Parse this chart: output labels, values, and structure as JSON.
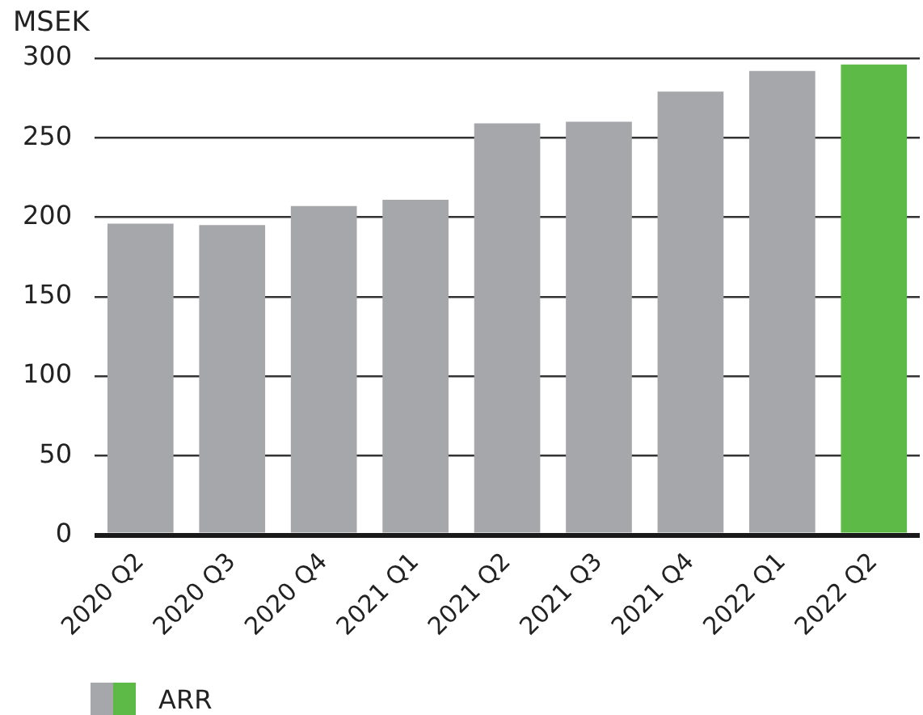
{
  "chart_data": {
    "type": "bar",
    "ylabel": "MSEK",
    "categories": [
      "2020 Q2",
      "2020 Q3",
      "2020 Q4",
      "2021 Q1",
      "2021 Q2",
      "2021 Q3",
      "2021 Q4",
      "2022 Q1",
      "2022 Q2"
    ],
    "series": [
      {
        "name": "ARR",
        "colors": [
          "#a6a7aa",
          "#a6a7aa",
          "#a6a7aa",
          "#a6a7aa",
          "#a6a7aa",
          "#a6a7aa",
          "#a6a7aa",
          "#a6a7aa",
          "#5dba46"
        ],
        "values": [
          196,
          195,
          207,
          211,
          259,
          260,
          279,
          292,
          296
        ]
      }
    ],
    "ylim": [
      0,
      300
    ],
    "yticks": [
      0,
      50,
      100,
      150,
      200,
      250,
      300
    ],
    "grid": "y",
    "legend": "bottom left"
  }
}
